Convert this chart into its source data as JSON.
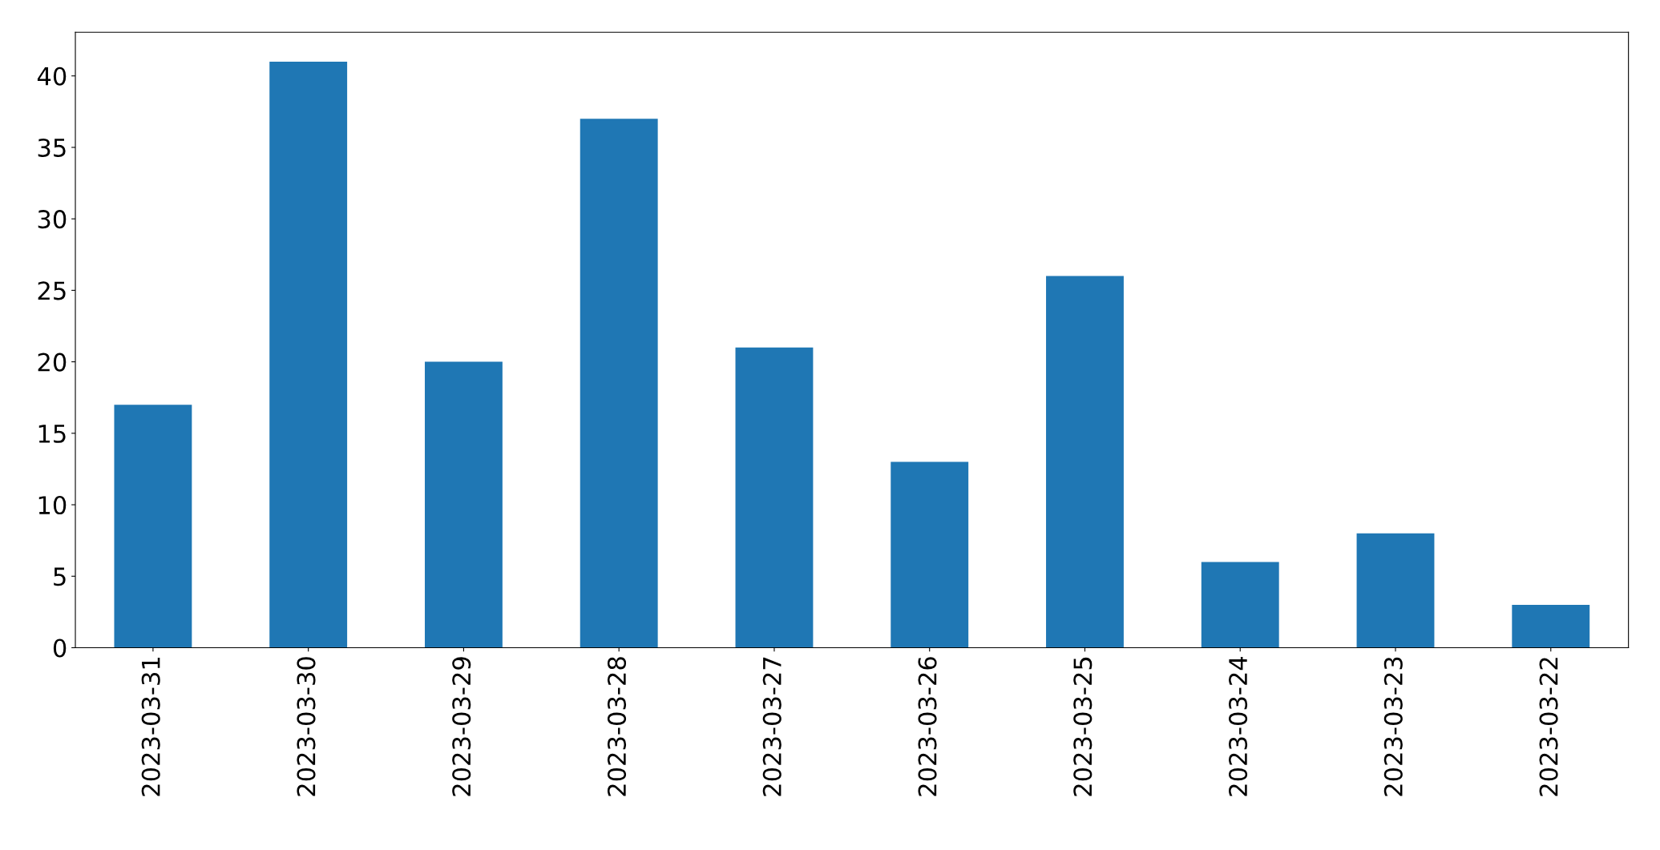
{
  "chart_data": {
    "type": "bar",
    "categories": [
      "2023-03-31",
      "2023-03-30",
      "2023-03-29",
      "2023-03-28",
      "2023-03-27",
      "2023-03-26",
      "2023-03-25",
      "2023-03-24",
      "2023-03-23",
      "2023-03-22"
    ],
    "values": [
      17,
      41,
      20,
      37,
      21,
      13,
      26,
      6,
      8,
      3
    ],
    "color": "#1f77b4",
    "ylim": [
      0,
      43.05
    ],
    "yticks": [
      0,
      5,
      10,
      15,
      20,
      25,
      30,
      35,
      40
    ],
    "grid": false,
    "legend": false
  }
}
